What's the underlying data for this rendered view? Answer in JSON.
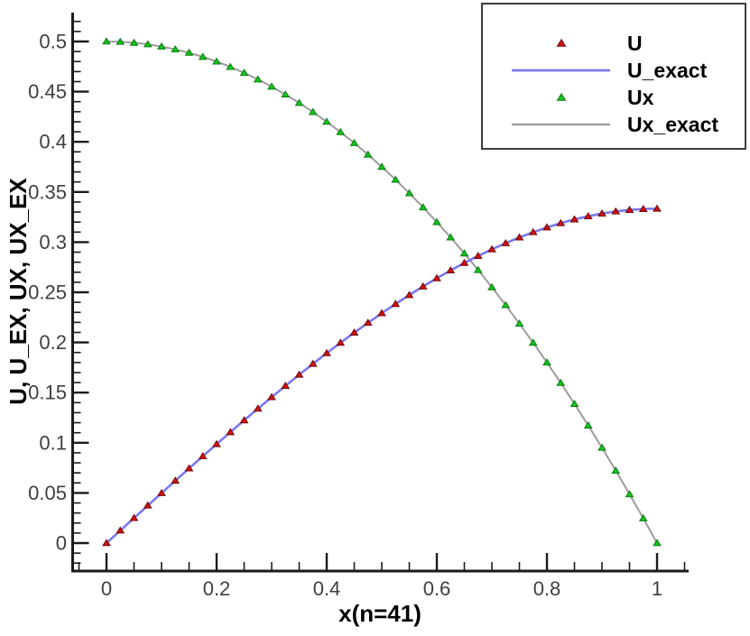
{
  "figure": {
    "background": "#ffffff",
    "axis_color": "#1b1b1b",
    "tick_label_color": "#3f3f3f"
  },
  "chart_data": {
    "type": "line",
    "title": "",
    "xlabel": "x(n=41)",
    "ylabel": "U, U_EX, UX, UX_EX",
    "xlim": [
      -0.062,
      1.057
    ],
    "ylim": [
      -0.028,
      0.529
    ],
    "grid": false,
    "legend_position": "top-right",
    "x_axis": {
      "major_tick_values": [
        0,
        0.2,
        0.4,
        0.6,
        0.8,
        1
      ],
      "major_tick_labels": [
        "0",
        "0.2",
        "0.4",
        "0.6",
        "0.8",
        "1"
      ],
      "minor_tick_step": 0.05
    },
    "y_axis": {
      "major_tick_values": [
        0,
        0.05,
        0.1,
        0.15,
        0.2,
        0.25,
        0.3,
        0.35,
        0.4,
        0.45,
        0.5
      ],
      "major_tick_labels": [
        "0",
        "0.05",
        "0.1",
        "0.15",
        "0.2",
        "0.25",
        "0.3",
        "0.35",
        "0.4",
        "0.45",
        "0.5"
      ],
      "minor_tick_step": 0.01
    },
    "x": [
      0,
      0.025,
      0.05,
      0.075,
      0.1,
      0.125,
      0.15,
      0.175,
      0.2,
      0.225,
      0.25,
      0.275,
      0.3,
      0.325,
      0.35,
      0.375,
      0.4,
      0.425,
      0.45,
      0.475,
      0.5,
      0.525,
      0.55,
      0.575,
      0.6,
      0.625,
      0.65,
      0.675,
      0.7,
      0.725,
      0.75,
      0.775,
      0.8,
      0.825,
      0.85,
      0.875,
      0.9,
      0.925,
      0.95,
      0.975,
      1
    ],
    "series": [
      {
        "name": "U",
        "legend_style": "marker",
        "marker": "triangle-up",
        "color": "#d21212",
        "edge_color": "#700707",
        "values": [
          0,
          0.0125,
          0.02498,
          0.03743,
          0.04983,
          0.06217,
          0.07444,
          0.08661,
          0.09867,
          0.1106,
          0.1224,
          0.13403,
          0.1455,
          0.15678,
          0.16785,
          0.17871,
          0.18933,
          0.1997,
          0.20981,
          0.21964,
          0.22917,
          0.23838,
          0.24727,
          0.25582,
          0.264,
          0.27181,
          0.27923,
          0.28624,
          0.29283,
          0.29899,
          0.30469,
          0.30992,
          0.31467,
          0.31891,
          0.32265,
          0.32585,
          0.3285,
          0.33059,
          0.3321,
          0.33303,
          0.33333
        ]
      },
      {
        "name": "U_exact",
        "legend_style": "line",
        "color": "#7b78ef",
        "values": [
          0,
          0.0125,
          0.02498,
          0.03743,
          0.04983,
          0.06217,
          0.07444,
          0.08661,
          0.09867,
          0.1106,
          0.1224,
          0.13403,
          0.1455,
          0.15678,
          0.16785,
          0.17871,
          0.18933,
          0.1997,
          0.20981,
          0.21964,
          0.22917,
          0.23838,
          0.24727,
          0.25582,
          0.264,
          0.27181,
          0.27923,
          0.28624,
          0.29283,
          0.29899,
          0.30469,
          0.30992,
          0.31467,
          0.31891,
          0.32265,
          0.32585,
          0.3285,
          0.33059,
          0.3321,
          0.33303,
          0.33333
        ]
      },
      {
        "name": "Ux",
        "legend_style": "marker",
        "marker": "triangle-up",
        "color": "#15c31e",
        "edge_color": "#0b7d11",
        "values": [
          0.5,
          0.49969,
          0.49875,
          0.49719,
          0.495,
          0.49219,
          0.48875,
          0.48469,
          0.48,
          0.47469,
          0.46875,
          0.46219,
          0.455,
          0.44719,
          0.43875,
          0.42969,
          0.42,
          0.40969,
          0.39875,
          0.38719,
          0.375,
          0.36219,
          0.34875,
          0.33469,
          0.32,
          0.30469,
          0.28875,
          0.27219,
          0.255,
          0.23719,
          0.21875,
          0.19969,
          0.18,
          0.15969,
          0.13875,
          0.11719,
          0.095,
          0.07219,
          0.04875,
          0.02469,
          0
        ]
      },
      {
        "name": "Ux_exact",
        "legend_style": "line",
        "color": "#9c9c9c",
        "values": [
          0.5,
          0.49969,
          0.49875,
          0.49719,
          0.495,
          0.49219,
          0.48875,
          0.48469,
          0.48,
          0.47469,
          0.46875,
          0.46219,
          0.455,
          0.44719,
          0.43875,
          0.42969,
          0.42,
          0.40969,
          0.39875,
          0.38719,
          0.375,
          0.36219,
          0.34875,
          0.33469,
          0.32,
          0.30469,
          0.28875,
          0.27219,
          0.255,
          0.23719,
          0.21875,
          0.19969,
          0.18,
          0.15969,
          0.13875,
          0.11719,
          0.095,
          0.07219,
          0.04875,
          0.02469,
          0
        ]
      }
    ]
  }
}
